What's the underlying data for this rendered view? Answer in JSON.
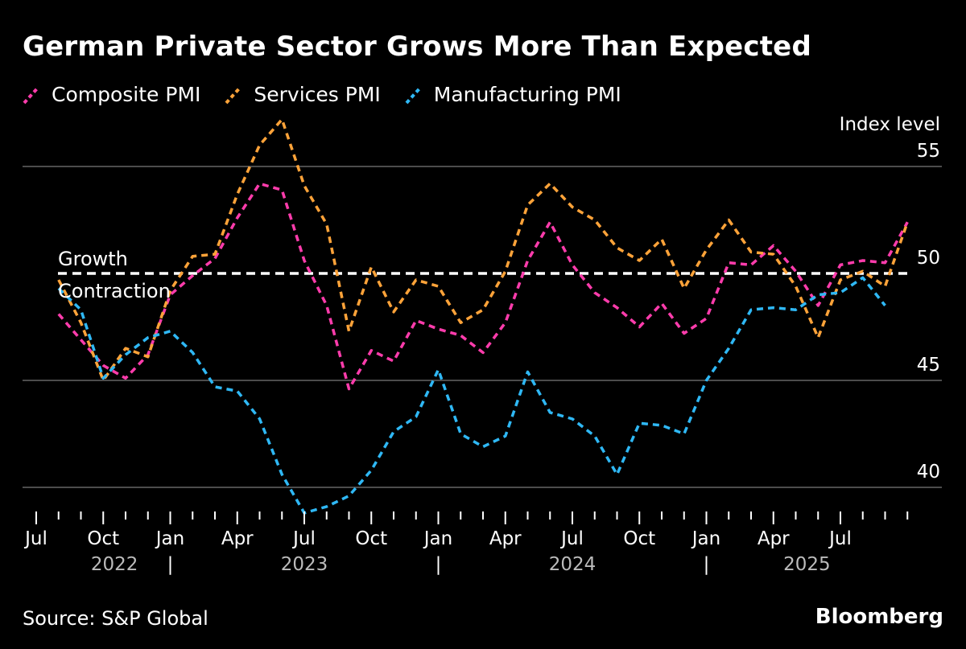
{
  "header": {
    "title": "German Private Sector Grows More Than Expected"
  },
  "footer": {
    "source": "Source: S&P Global",
    "brand": "Bloomberg"
  },
  "colors": {
    "background": "#000000",
    "composite": "#ff3cac",
    "services": "#ffa339",
    "manufacturing": "#2fb8f5",
    "grid": "#666666",
    "threshold": "#ffffff",
    "year_text": "#bbbbbb"
  },
  "chart_data": {
    "type": "line",
    "y_axis_title": "Index level",
    "ylim": [
      38.7,
      56
    ],
    "y_ticks": [
      40,
      45,
      50,
      55
    ],
    "threshold": {
      "value": 50,
      "label_above": "Growth",
      "label_below": "Contraction"
    },
    "x_start": "2022-07",
    "x_ticks": [
      {
        "index": 0,
        "label": "Jul"
      },
      {
        "index": 3,
        "label": "Oct"
      },
      {
        "index": 6,
        "label": "Jan"
      },
      {
        "index": 9,
        "label": "Apr"
      },
      {
        "index": 12,
        "label": "Jul"
      },
      {
        "index": 15,
        "label": "Oct"
      },
      {
        "index": 18,
        "label": "Jan"
      },
      {
        "index": 21,
        "label": "Apr"
      },
      {
        "index": 24,
        "label": "Jul"
      },
      {
        "index": 27,
        "label": "Oct"
      },
      {
        "index": 30,
        "label": "Jan"
      },
      {
        "index": 33,
        "label": "Apr"
      },
      {
        "index": 36,
        "label": "Jul"
      }
    ],
    "years": [
      {
        "label": "2022",
        "center_index": 3.5
      },
      {
        "label": "2023",
        "center_index": 12
      },
      {
        "label": "2024",
        "center_index": 24
      },
      {
        "label": "2025",
        "center_index": 34.5
      }
    ],
    "year_separators": [
      {
        "label": "|",
        "index": 6
      },
      {
        "label": "|",
        "index": 18
      },
      {
        "label": "|",
        "index": 30
      }
    ],
    "series": [
      {
        "name": "Composite PMI",
        "color_key": "composite",
        "start_index": 1,
        "values": [
          48.1,
          46.9,
          45.7,
          45.1,
          46.2,
          49.0,
          49.9,
          50.7,
          52.6,
          54.2,
          53.9,
          50.6,
          48.5,
          44.6,
          46.4,
          45.9,
          47.8,
          47.4,
          47.1,
          46.3,
          47.7,
          50.6,
          52.4,
          50.4,
          49.1,
          48.4,
          47.5,
          48.6,
          47.2,
          47.9,
          50.5,
          50.4,
          51.3,
          50.1,
          48.5,
          50.4,
          50.6,
          50.5,
          52.4
        ]
      },
      {
        "name": "Services PMI",
        "color_key": "services",
        "start_index": 1,
        "values": [
          49.7,
          47.7,
          45.0,
          46.5,
          46.1,
          49.2,
          50.8,
          50.9,
          53.7,
          56.0,
          57.2,
          54.1,
          52.3,
          47.3,
          50.3,
          48.2,
          49.7,
          49.4,
          47.7,
          48.3,
          50.1,
          53.2,
          54.2,
          53.1,
          52.5,
          51.2,
          50.6,
          51.6,
          49.3,
          51.1,
          52.5,
          51.0,
          50.9,
          49.4,
          47.0,
          49.7,
          50.1,
          49.4,
          52.4
        ]
      },
      {
        "name": "Manufacturing PMI",
        "color_key": "manufacturing",
        "start_index": 1,
        "values": [
          49.3,
          48.3,
          45.1,
          46.2,
          47.0,
          47.3,
          46.3,
          44.7,
          44.5,
          43.2,
          40.6,
          38.8,
          39.1,
          39.6,
          40.8,
          42.6,
          43.3,
          45.5,
          42.5,
          41.9,
          42.4,
          45.4,
          43.5,
          43.2,
          42.4,
          40.6,
          43.0,
          42.9,
          42.5,
          45.0,
          46.5,
          48.3,
          48.4,
          48.3,
          49.0,
          49.1,
          49.8,
          48.5
        ]
      }
    ]
  }
}
